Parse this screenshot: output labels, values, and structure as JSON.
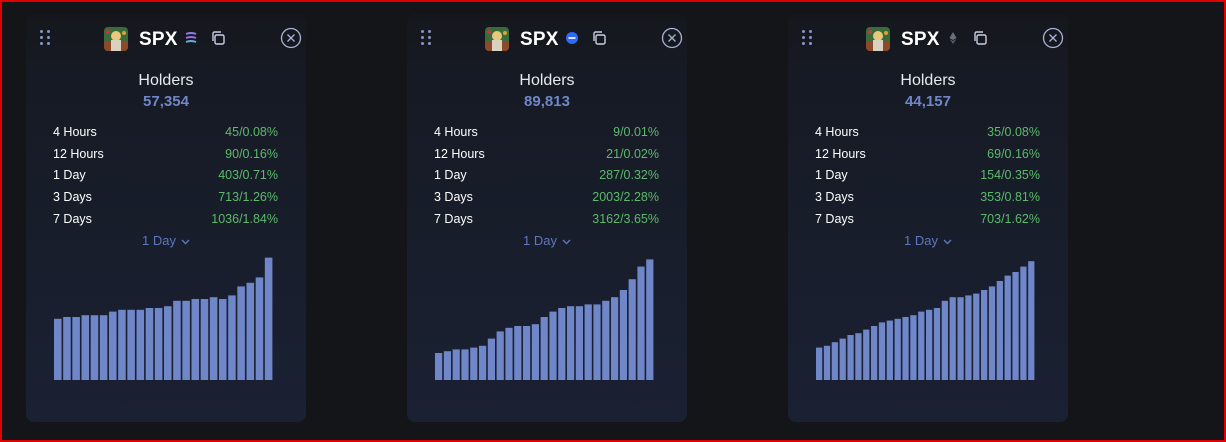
{
  "colors": {
    "page_background": "#141519",
    "card_background": "#1a2133",
    "accent": "#6f86c9",
    "positive": "#5cba6b",
    "bar": "#6f86c9",
    "frame": "#e00000"
  },
  "cards": [
    {
      "ticker": "SPX",
      "chain_icon": "stacked-lines-icon",
      "chain_color": "#8b7cf0",
      "holders_label": "Holders",
      "holders_value": "57,354",
      "stats": [
        {
          "label": "4 Hours",
          "value": "45/0.08%"
        },
        {
          "label": "12 Hours",
          "value": "90/0.16%"
        },
        {
          "label": "1 Day",
          "value": "403/0.71%"
        },
        {
          "label": "3 Days",
          "value": "713/1.26%"
        },
        {
          "label": "7 Days",
          "value": "1036/1.84%"
        }
      ],
      "range_label": "1 Day",
      "chart_bars": [
        34,
        35,
        35,
        36,
        36,
        36,
        38,
        39,
        39,
        39,
        40,
        40,
        41,
        44,
        44,
        45,
        45,
        46,
        45,
        47,
        52,
        54,
        57,
        68
      ]
    },
    {
      "ticker": "SPX",
      "chain_icon": "base-chain-icon",
      "chain_color": "#2f6af5",
      "holders_label": "Holders",
      "holders_value": "89,813",
      "stats": [
        {
          "label": "4 Hours",
          "value": "9/0.01%"
        },
        {
          "label": "12 Hours",
          "value": "21/0.02%"
        },
        {
          "label": "1 Day",
          "value": "287/0.32%"
        },
        {
          "label": "3 Days",
          "value": "2003/2.28%"
        },
        {
          "label": "7 Days",
          "value": "3162/3.65%"
        }
      ],
      "range_label": "1 Day",
      "chart_bars": [
        15,
        16,
        17,
        17,
        18,
        19,
        23,
        27,
        29,
        30,
        30,
        31,
        35,
        38,
        40,
        41,
        41,
        42,
        42,
        44,
        46,
        50,
        56,
        63,
        67
      ]
    },
    {
      "ticker": "SPX",
      "chain_icon": "ethereum-icon",
      "chain_color": "#6b6f7c",
      "holders_label": "Holders",
      "holders_value": "44,157",
      "stats": [
        {
          "label": "4 Hours",
          "value": "35/0.08%"
        },
        {
          "label": "12 Hours",
          "value": "69/0.16%"
        },
        {
          "label": "1 Day",
          "value": "154/0.35%"
        },
        {
          "label": "3 Days",
          "value": "353/0.81%"
        },
        {
          "label": "7 Days",
          "value": "703/1.62%"
        }
      ],
      "range_label": "1 Day",
      "chart_bars": [
        18,
        19,
        21,
        23,
        25,
        26,
        28,
        30,
        32,
        33,
        34,
        35,
        36,
        38,
        39,
        40,
        44,
        46,
        46,
        47,
        48,
        50,
        52,
        55,
        58,
        60,
        63,
        66
      ]
    }
  ]
}
